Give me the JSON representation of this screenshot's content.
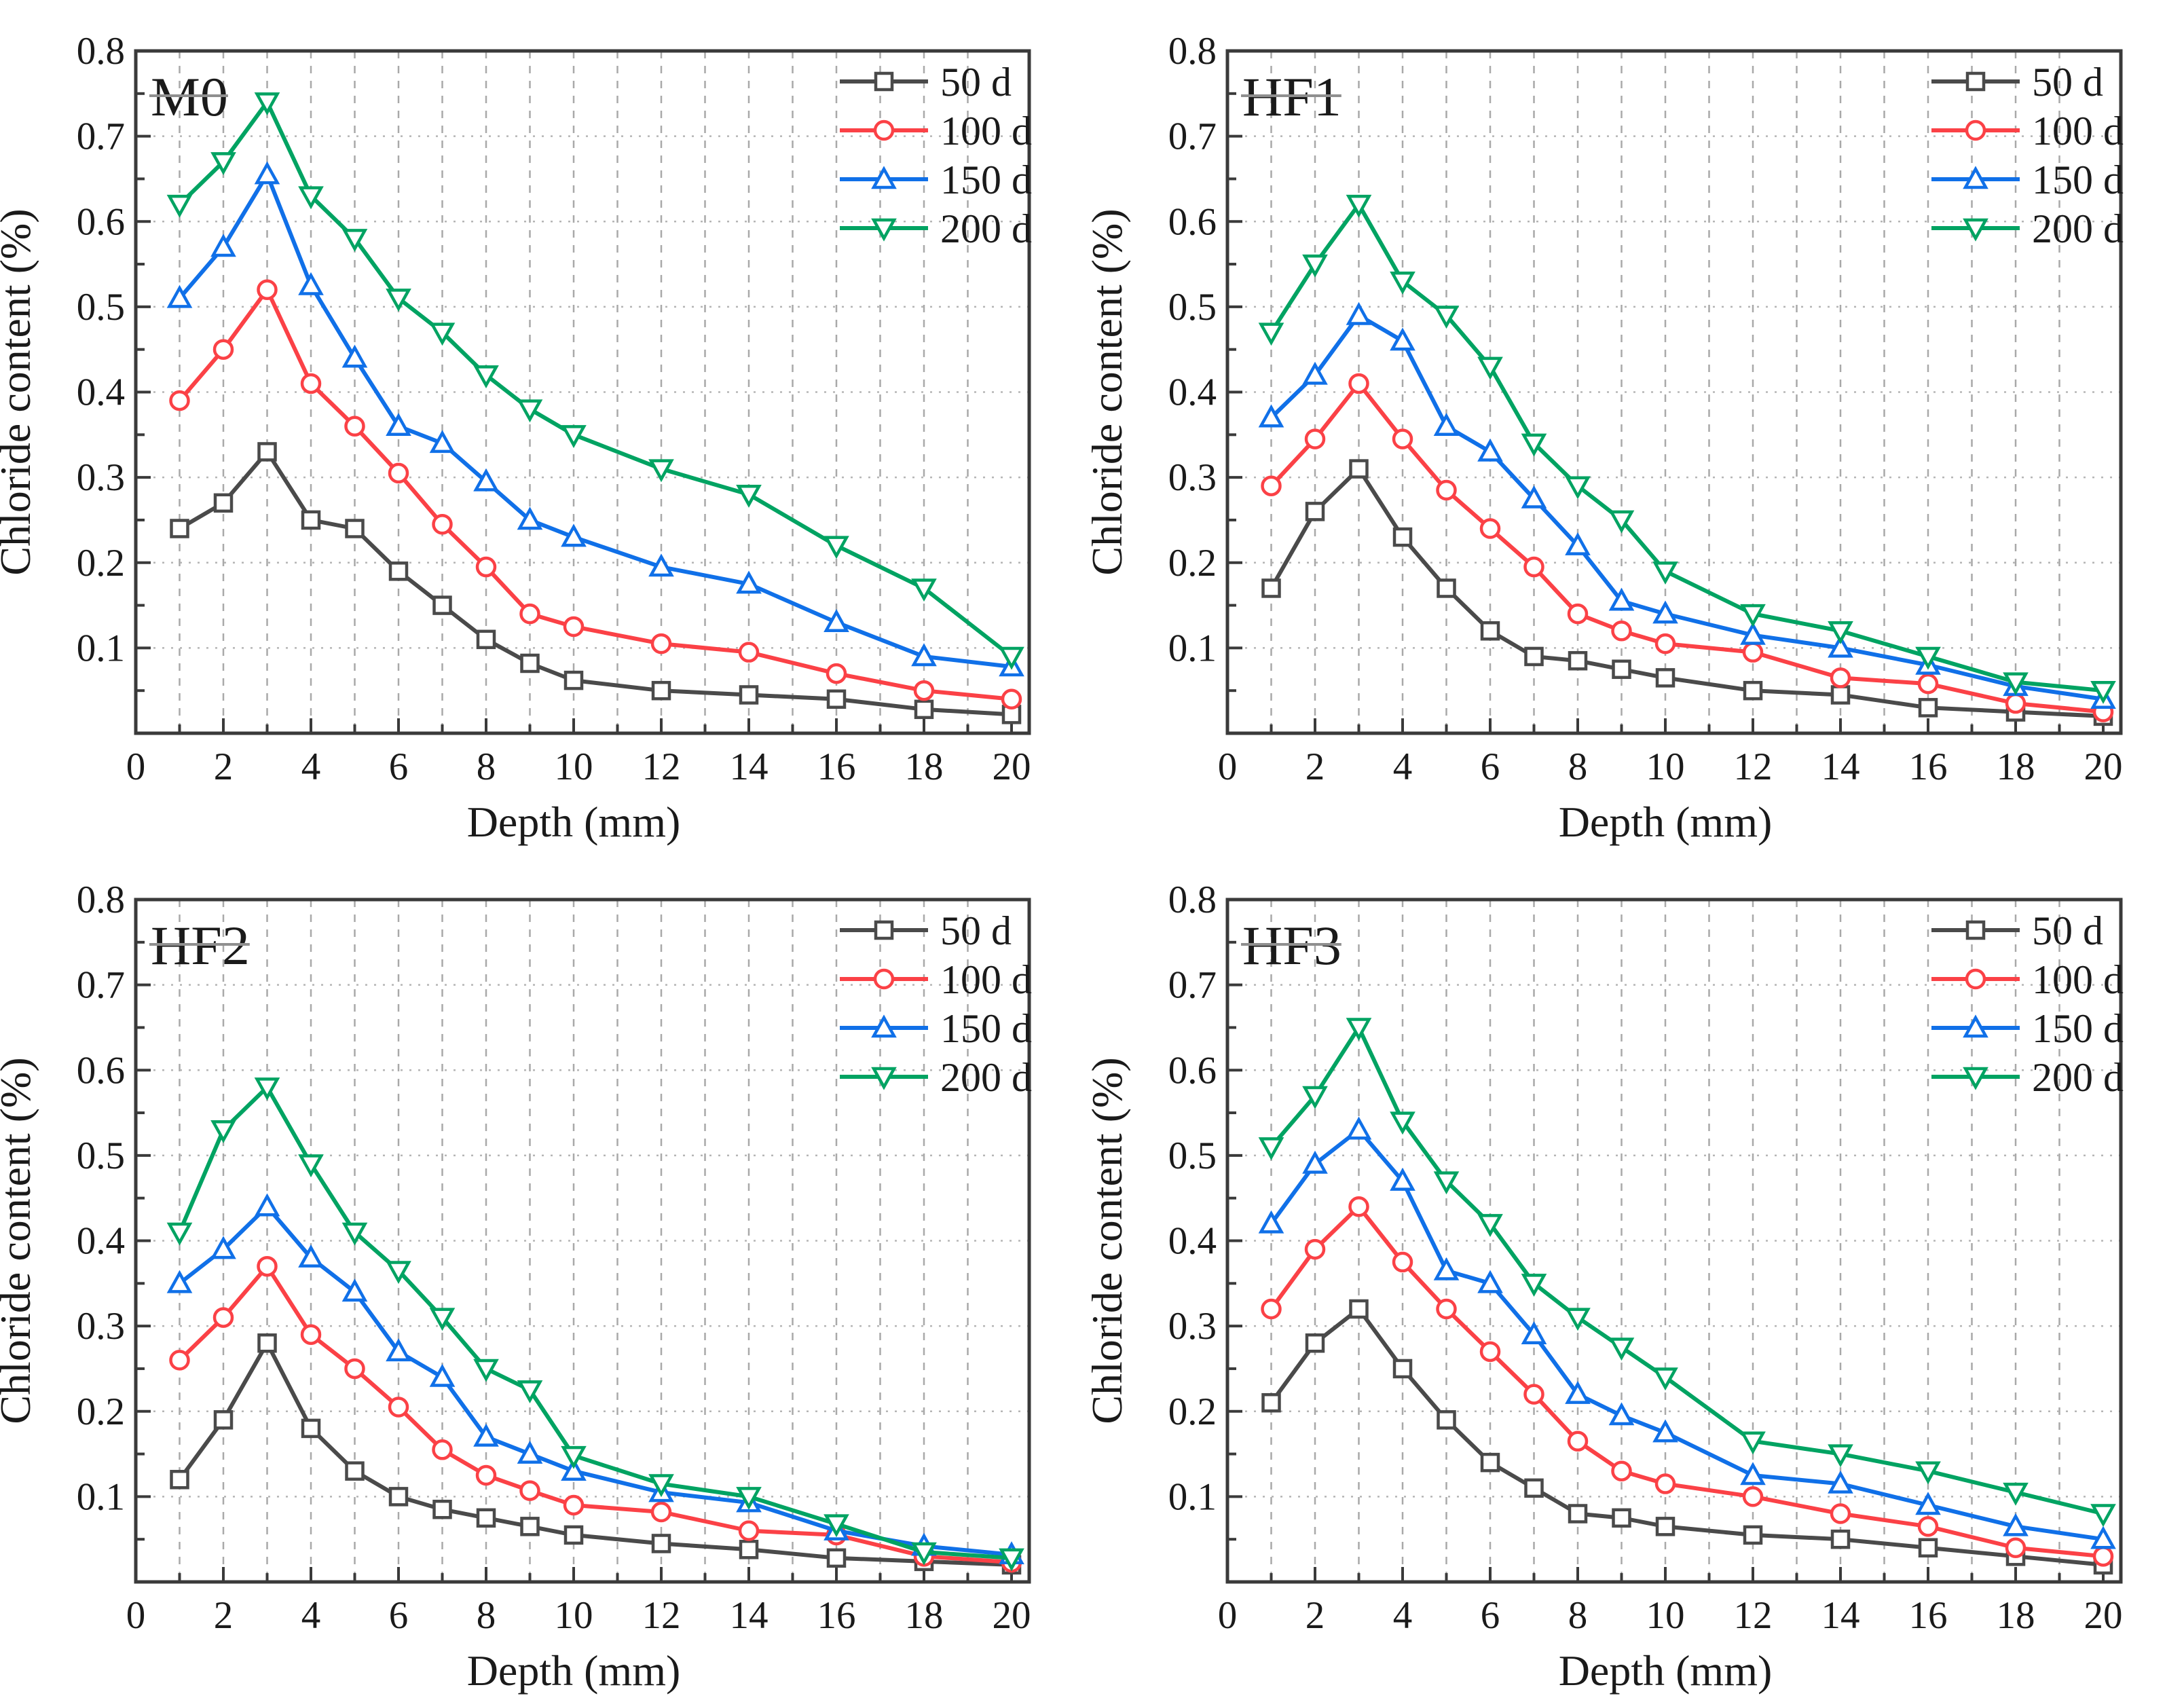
{
  "figure": {
    "x_axis_label": "Depth (mm)",
    "y_axis_label": "Chloride content (%)",
    "legend": [
      "50 d",
      "100 d",
      "150 d",
      "200 d"
    ],
    "series_colors": {
      "50 d": "#4a4a4a",
      "100 d": "#fb4146",
      "150 d": "#1070e8",
      "200 d": "#00a362"
    },
    "series_markers": {
      "50 d": "square",
      "100 d": "circle",
      "150 d": "triangle-up",
      "200 d": "triangle-down"
    },
    "frame_color": "#3a3a3a",
    "grid_color_vertical": "#a9a9a9",
    "grid_color_horizontal": "#b5b5b5",
    "x_tick_labels": [
      "0",
      "2",
      "4",
      "6",
      "8",
      "10",
      "12",
      "14",
      "16",
      "18",
      "20"
    ],
    "y_tick_labels": [
      "0.1",
      "0.2",
      "0.3",
      "0.4",
      "0.5",
      "0.6",
      "0.7",
      "0.8"
    ]
  },
  "chart_data": [
    {
      "type": "line",
      "title": "M0",
      "xlabel": "Depth (mm)",
      "ylabel": "Chloride content (%)",
      "xlim": [
        0,
        20
      ],
      "ylim": [
        0,
        0.8
      ],
      "x_major_ticks": [
        0,
        2,
        4,
        6,
        8,
        10,
        12,
        14,
        16,
        18,
        20
      ],
      "y_major_ticks": [
        0.1,
        0.2,
        0.3,
        0.4,
        0.5,
        0.6,
        0.7,
        0.8
      ],
      "grid": true,
      "legend_position": "top-right",
      "x": [
        1,
        2,
        3,
        4,
        5,
        6,
        7,
        8,
        9,
        10,
        12,
        14,
        16,
        18,
        20
      ],
      "series": [
        {
          "name": "50 d",
          "marker": "square",
          "color": "#4a4a4a",
          "values": [
            0.24,
            0.27,
            0.33,
            0.25,
            0.24,
            0.19,
            0.15,
            0.11,
            0.082,
            0.062,
            0.05,
            0.045,
            0.04,
            0.028,
            0.022
          ]
        },
        {
          "name": "100 d",
          "marker": "circle",
          "color": "#fb4146",
          "values": [
            0.39,
            0.45,
            0.52,
            0.41,
            0.36,
            0.305,
            0.245,
            0.195,
            0.14,
            0.125,
            0.105,
            0.095,
            0.07,
            0.05,
            0.04
          ]
        },
        {
          "name": "150 d",
          "marker": "triangle-up",
          "color": "#1070e8",
          "values": [
            0.51,
            0.57,
            0.655,
            0.525,
            0.44,
            0.36,
            0.34,
            0.295,
            0.25,
            0.23,
            0.195,
            0.175,
            0.13,
            0.09,
            0.078
          ]
        },
        {
          "name": "200 d",
          "marker": "triangle-down",
          "color": "#00a362",
          "values": [
            0.62,
            0.67,
            0.74,
            0.63,
            0.58,
            0.51,
            0.47,
            0.42,
            0.38,
            0.35,
            0.31,
            0.28,
            0.22,
            0.17,
            0.09
          ]
        }
      ]
    },
    {
      "type": "line",
      "title": "HF1",
      "xlabel": "Depth (mm)",
      "ylabel": "Chloride content (%)",
      "xlim": [
        0,
        20
      ],
      "ylim": [
        0,
        0.8
      ],
      "x_major_ticks": [
        0,
        2,
        4,
        6,
        8,
        10,
        12,
        14,
        16,
        18,
        20
      ],
      "y_major_ticks": [
        0.1,
        0.2,
        0.3,
        0.4,
        0.5,
        0.6,
        0.7,
        0.8
      ],
      "grid": true,
      "legend_position": "top-right",
      "x": [
        1,
        2,
        3,
        4,
        5,
        6,
        7,
        8,
        9,
        10,
        12,
        14,
        16,
        18,
        20
      ],
      "series": [
        {
          "name": "50 d",
          "marker": "square",
          "color": "#4a4a4a",
          "values": [
            0.17,
            0.26,
            0.31,
            0.23,
            0.17,
            0.12,
            0.09,
            0.085,
            0.075,
            0.065,
            0.05,
            0.045,
            0.03,
            0.025,
            0.02
          ]
        },
        {
          "name": "100 d",
          "marker": "circle",
          "color": "#fb4146",
          "values": [
            0.29,
            0.345,
            0.41,
            0.345,
            0.285,
            0.24,
            0.195,
            0.14,
            0.12,
            0.105,
            0.095,
            0.065,
            0.058,
            0.035,
            0.025
          ]
        },
        {
          "name": "150 d",
          "marker": "triangle-up",
          "color": "#1070e8",
          "values": [
            0.37,
            0.42,
            0.49,
            0.46,
            0.36,
            0.33,
            0.275,
            0.22,
            0.155,
            0.14,
            0.115,
            0.1,
            0.08,
            0.055,
            0.04
          ]
        },
        {
          "name": "200 d",
          "marker": "triangle-down",
          "color": "#00a362",
          "values": [
            0.47,
            0.55,
            0.62,
            0.53,
            0.49,
            0.43,
            0.34,
            0.29,
            0.25,
            0.19,
            0.14,
            0.12,
            0.09,
            0.06,
            0.05
          ]
        }
      ]
    },
    {
      "type": "line",
      "title": "HF2",
      "xlabel": "Depth (mm)",
      "ylabel": "Chloride content (%)",
      "xlim": [
        0,
        20
      ],
      "ylim": [
        0,
        0.8
      ],
      "x_major_ticks": [
        0,
        2,
        4,
        6,
        8,
        10,
        12,
        14,
        16,
        18,
        20
      ],
      "y_major_ticks": [
        0.1,
        0.2,
        0.3,
        0.4,
        0.5,
        0.6,
        0.7,
        0.8
      ],
      "grid": true,
      "legend_position": "top-right",
      "x": [
        1,
        2,
        3,
        4,
        5,
        6,
        7,
        8,
        9,
        10,
        12,
        14,
        16,
        18,
        20
      ],
      "series": [
        {
          "name": "50 d",
          "marker": "square",
          "color": "#4a4a4a",
          "values": [
            0.12,
            0.19,
            0.28,
            0.18,
            0.13,
            0.1,
            0.085,
            0.075,
            0.065,
            0.055,
            0.045,
            0.038,
            0.028,
            0.024,
            0.02
          ]
        },
        {
          "name": "100 d",
          "marker": "circle",
          "color": "#fb4146",
          "values": [
            0.26,
            0.31,
            0.37,
            0.29,
            0.25,
            0.205,
            0.155,
            0.125,
            0.107,
            0.09,
            0.082,
            0.06,
            0.055,
            0.03,
            0.023
          ]
        },
        {
          "name": "150 d",
          "marker": "triangle-up",
          "color": "#1070e8",
          "values": [
            0.35,
            0.39,
            0.44,
            0.38,
            0.34,
            0.27,
            0.24,
            0.17,
            0.15,
            0.13,
            0.105,
            0.093,
            0.06,
            0.042,
            0.032
          ]
        },
        {
          "name": "200 d",
          "marker": "triangle-down",
          "color": "#00a362",
          "values": [
            0.41,
            0.53,
            0.58,
            0.49,
            0.41,
            0.365,
            0.31,
            0.25,
            0.225,
            0.148,
            0.115,
            0.1,
            0.068,
            0.035,
            0.028
          ]
        }
      ]
    },
    {
      "type": "line",
      "title": "HF3",
      "xlabel": "Depth (mm)",
      "ylabel": "Chloride content (%)",
      "xlim": [
        0,
        20
      ],
      "ylim": [
        0,
        0.8
      ],
      "x_major_ticks": [
        0,
        2,
        4,
        6,
        8,
        10,
        12,
        14,
        16,
        18,
        20
      ],
      "y_major_ticks": [
        0.1,
        0.2,
        0.3,
        0.4,
        0.5,
        0.6,
        0.7,
        0.8
      ],
      "grid": true,
      "legend_position": "top-right",
      "x": [
        1,
        2,
        3,
        4,
        5,
        6,
        7,
        8,
        9,
        10,
        12,
        14,
        16,
        18,
        20
      ],
      "series": [
        {
          "name": "50 d",
          "marker": "square",
          "color": "#4a4a4a",
          "values": [
            0.21,
            0.28,
            0.32,
            0.25,
            0.19,
            0.14,
            0.11,
            0.08,
            0.075,
            0.065,
            0.055,
            0.05,
            0.04,
            0.03,
            0.02
          ]
        },
        {
          "name": "100 d",
          "marker": "circle",
          "color": "#fb4146",
          "values": [
            0.32,
            0.39,
            0.44,
            0.375,
            0.32,
            0.27,
            0.22,
            0.165,
            0.13,
            0.115,
            0.1,
            0.08,
            0.065,
            0.04,
            0.03
          ]
        },
        {
          "name": "150 d",
          "marker": "triangle-up",
          "color": "#1070e8",
          "values": [
            0.42,
            0.49,
            0.53,
            0.47,
            0.365,
            0.35,
            0.29,
            0.22,
            0.195,
            0.175,
            0.125,
            0.115,
            0.09,
            0.065,
            0.05
          ]
        },
        {
          "name": "200 d",
          "marker": "triangle-down",
          "color": "#00a362",
          "values": [
            0.51,
            0.57,
            0.65,
            0.54,
            0.47,
            0.42,
            0.35,
            0.31,
            0.275,
            0.24,
            0.165,
            0.15,
            0.13,
            0.105,
            0.08
          ]
        }
      ]
    }
  ]
}
